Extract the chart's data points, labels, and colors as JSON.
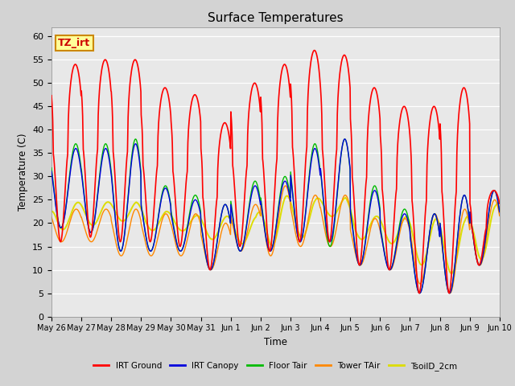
{
  "title": "Surface Temperatures",
  "xlabel": "Time",
  "ylabel": "Temperature (C)",
  "ylim": [
    0,
    62
  ],
  "yticks": [
    0,
    5,
    10,
    15,
    20,
    25,
    30,
    35,
    40,
    45,
    50,
    55,
    60
  ],
  "fig_bg": "#d3d3d3",
  "plot_bg": "#e8e8e8",
  "annotation_text": "TZ_irt",
  "annotation_bg": "#ffff99",
  "annotation_border": "#cc8800",
  "annotation_text_color": "#cc0000",
  "series": {
    "IRT_Ground": {
      "color": "#ff0000",
      "lw": 1.2
    },
    "IRT_Canopy": {
      "color": "#0000dd",
      "lw": 1.0
    },
    "Floor_Tair": {
      "color": "#00bb00",
      "lw": 1.0
    },
    "Tower_TAir": {
      "color": "#ff8800",
      "lw": 1.0
    },
    "TsoilD_2cm": {
      "color": "#dddd00",
      "lw": 1.4
    }
  },
  "legend": [
    {
      "label": "IRT Ground",
      "color": "#ff0000"
    },
    {
      "label": "IRT Canopy",
      "color": "#0000dd"
    },
    {
      "label": "Floor Tair",
      "color": "#00bb00"
    },
    {
      "label": "Tower TAir",
      "color": "#ff8800"
    },
    {
      "label": "TsoilD_2cm",
      "color": "#dddd00"
    }
  ],
  "x_tick_labels": [
    "May 26",
    "May 27",
    "May 28",
    "May 29",
    "May 30",
    "May 31",
    "Jun 1",
    "Jun 2",
    "Jun 3",
    "Jun 4",
    "Jun 5",
    "Jun 6",
    "Jun 7",
    "Jun 8",
    "Jun 9",
    "Jun 10"
  ],
  "n_days": 15,
  "pts_per_day": 96,
  "irt_ground_peaks": [
    54,
    55,
    55,
    49,
    47.5,
    41.5,
    50,
    54,
    57,
    56,
    49,
    45,
    45,
    49,
    27
  ],
  "irt_ground_mins": [
    16,
    17,
    16,
    16,
    15,
    10,
    15,
    14,
    16,
    16,
    11,
    10,
    5,
    5,
    11
  ],
  "canopy_peaks": [
    36,
    36,
    37,
    27.5,
    25,
    24,
    28,
    29,
    36,
    38,
    27,
    22,
    22,
    26,
    27
  ],
  "canopy_mins": [
    19,
    18,
    14,
    14,
    14,
    10,
    14,
    14,
    16,
    16,
    11,
    10,
    5,
    5,
    11
  ],
  "floor_peaks": [
    37,
    37,
    38,
    28,
    26,
    24,
    29,
    30,
    37,
    38,
    28,
    23,
    22,
    26,
    27
  ],
  "floor_mins": [
    19,
    18,
    14,
    14,
    14,
    10,
    14,
    14,
    16,
    15,
    11,
    10,
    5,
    5,
    11
  ],
  "tower_peaks": [
    23,
    23,
    23,
    22,
    22,
    20,
    24,
    28,
    26,
    26,
    21,
    21,
    22,
    23,
    25
  ],
  "tower_mins": [
    16,
    16,
    13,
    13,
    13,
    10,
    14,
    13,
    15,
    15,
    11,
    10,
    7,
    5,
    11
  ],
  "tsoil_peaks": [
    25,
    25,
    25,
    23,
    22,
    22,
    22,
    27,
    26,
    26,
    22,
    22,
    22,
    22,
    25
  ],
  "tsoil_mins": [
    18,
    19,
    20,
    18,
    18,
    16,
    15,
    14,
    16,
    21,
    16,
    15,
    10,
    8,
    11
  ]
}
